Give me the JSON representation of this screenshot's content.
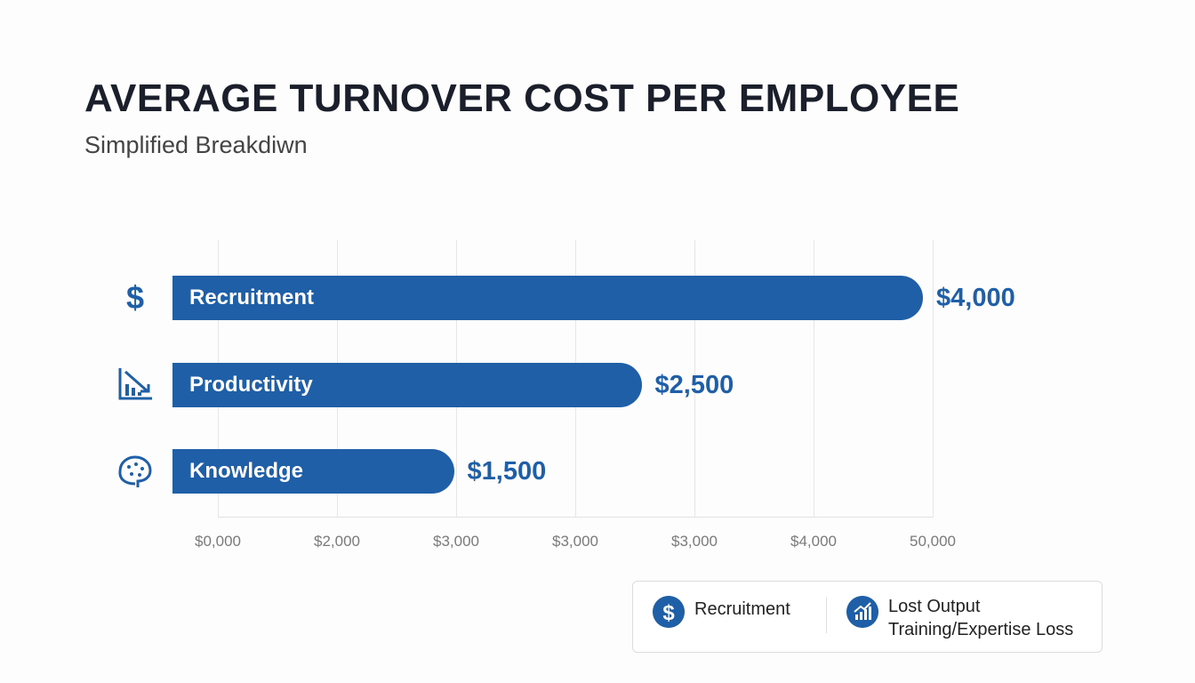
{
  "chart_data": {
    "type": "bar",
    "orientation": "horizontal",
    "title": "AVERAGE TURNOVER COST PER EMPLOYEE",
    "subtitle": "Simplified Breakdiwn",
    "categories": [
      "Recruitment",
      "Productivity",
      "Knowledge"
    ],
    "values": [
      4000,
      2500,
      1500
    ],
    "value_labels": [
      "$4,000",
      "$2,500",
      "$1,500"
    ],
    "category_icons": [
      "dollar-icon",
      "declining-chart-icon",
      "brain-icon"
    ],
    "x_tick_labels": [
      "$0,000",
      "$2,000",
      "$3,000",
      "$3,000",
      "$3,000",
      "$4,000",
      "50,000"
    ],
    "grid": true,
    "bar_color": "#1f5fa8",
    "legend": {
      "placement": "bottom-right",
      "items": [
        {
          "label": "Recruitment",
          "icon": "dollar-icon"
        },
        {
          "label": "Lost Output",
          "label2": "Training/Expertise Loss",
          "icon": "growth-chart-icon"
        }
      ]
    }
  }
}
